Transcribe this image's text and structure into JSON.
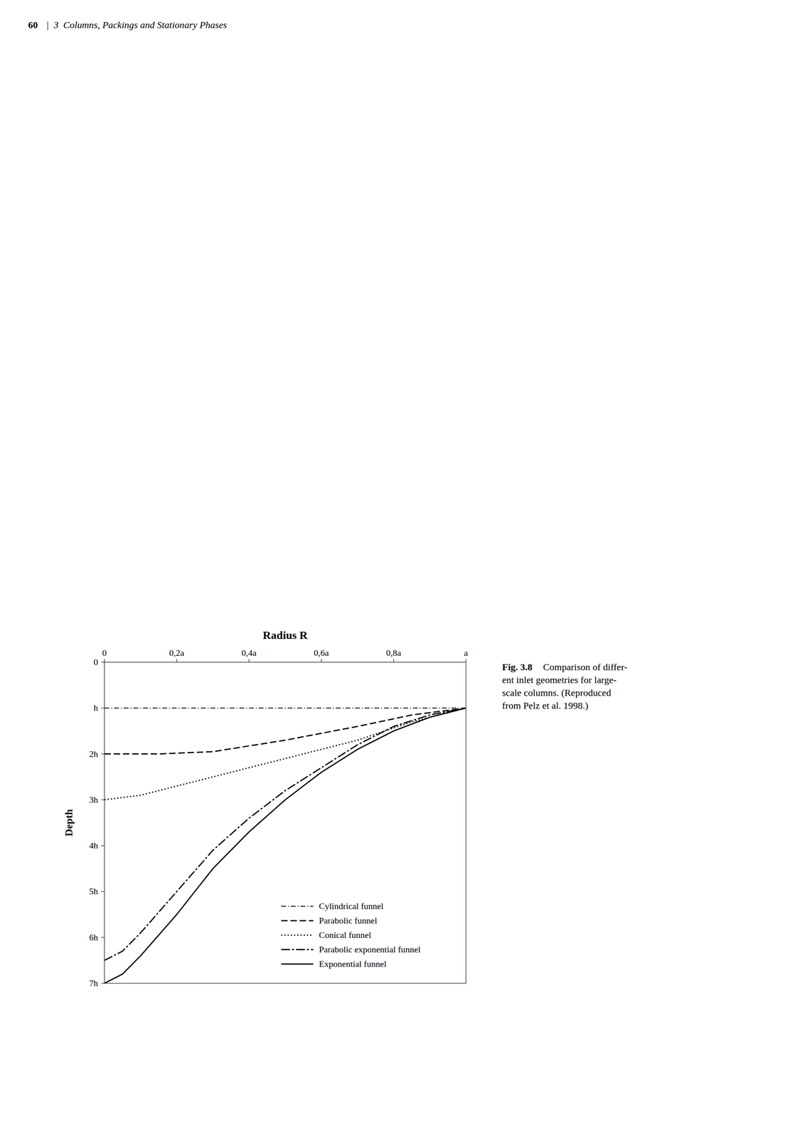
{
  "chart_data": {
    "type": "line",
    "title": "Radius R",
    "ylabel": "Depth",
    "xlim": [
      0.0,
      1.0
    ],
    "xticks": [
      0,
      {
        "value": 0.2,
        "label": "0,2a"
      },
      {
        "value": 0.4,
        "label": "0,4a"
      },
      {
        "value": 0.6,
        "label": "0,6a"
      },
      {
        "value": 0.8,
        "label": "0,8a"
      },
      {
        "value": 1.0,
        "label": "a"
      }
    ],
    "ylim": [
      7,
      0
    ],
    "yticks": [
      0,
      {
        "value": 1,
        "label": "h"
      },
      {
        "value": 2,
        "label": "2h"
      },
      {
        "value": 3,
        "label": "3h"
      },
      {
        "value": 4,
        "label": "4h"
      },
      {
        "value": 5,
        "label": "5h"
      },
      {
        "value": 6,
        "label": "6h"
      },
      {
        "value": 7,
        "label": "7h"
      }
    ],
    "grid": false,
    "legend": "lower right",
    "series": [
      {
        "name": "Cylindrical funnel",
        "color": "#000000",
        "line_style": "dashdot",
        "x": [
          0.0,
          1.0
        ],
        "values": [
          1.0,
          1.0
        ]
      },
      {
        "name": "Parabolic funnel",
        "color": "#000000",
        "line_style": "dashed",
        "x": [
          0.0,
          0.05,
          0.15,
          0.3,
          0.5,
          0.7,
          0.85,
          1.0
        ],
        "values": [
          2.0,
          2.0,
          2.0,
          1.95,
          1.7,
          1.4,
          1.15,
          1.0
        ]
      },
      {
        "name": "Conical funnel",
        "color": "#000000",
        "line_style": "dotted",
        "x": [
          0.0,
          0.1,
          0.3,
          0.5,
          0.7,
          0.85,
          1.0
        ],
        "values": [
          3.0,
          2.9,
          2.5,
          2.1,
          1.7,
          1.3,
          1.0
        ]
      },
      {
        "name": "Parabolic exponential funnel",
        "color": "#000000",
        "line_style": "dashdot",
        "x": [
          0.0,
          0.05,
          0.1,
          0.2,
          0.3,
          0.4,
          0.5,
          0.6,
          0.7,
          0.8,
          0.9,
          1.0
        ],
        "values": [
          6.5,
          6.3,
          5.9,
          5.0,
          4.1,
          3.4,
          2.8,
          2.3,
          1.8,
          1.4,
          1.15,
          1.0
        ]
      },
      {
        "name": "Exponential funnel",
        "color": "#000000",
        "line_style": "solid",
        "x": [
          0.0,
          0.05,
          0.1,
          0.2,
          0.3,
          0.4,
          0.5,
          0.6,
          0.7,
          0.8,
          0.9,
          1.0
        ],
        "values": [
          7.0,
          6.8,
          6.4,
          5.5,
          4.5,
          3.7,
          3.0,
          2.4,
          1.9,
          1.5,
          1.2,
          1.0
        ]
      }
    ],
    "annotations": [
      "60",
      "|  3  Columns, Packings and Stationary Phases",
      "Fig. 3.8",
      "  Comparison of differ-\nent inlet geometries for large-\nscale columns. (Reproduced\nfrom Pelz et al. 1998.)"
    ]
  }
}
